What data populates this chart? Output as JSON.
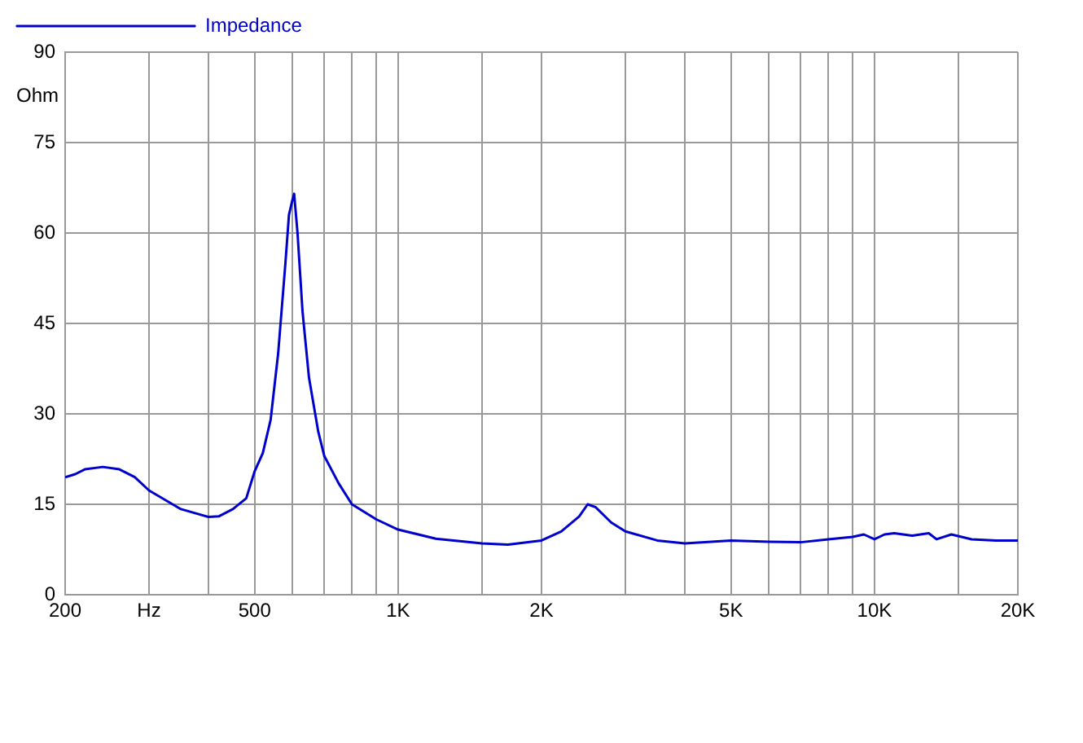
{
  "chart_data": {
    "type": "line",
    "ylabel": "Ohm",
    "legend": "top left",
    "grid": true,
    "log": "x",
    "marker": "none",
    "line_style": "solid",
    "xlim": [
      200,
      20000
    ],
    "ylim": [
      0,
      90
    ],
    "xticks": [
      200,
      {
        "value": 300,
        "label": "Hz"
      },
      {
        "value": 400,
        "label": null
      },
      500,
      {
        "value": 600,
        "label": null
      },
      {
        "value": 700,
        "label": null
      },
      {
        "value": 800,
        "label": null
      },
      {
        "value": 900,
        "label": null
      },
      {
        "value": 1000,
        "label": "1K"
      },
      {
        "value": 1500,
        "label": null
      },
      {
        "value": 2000,
        "label": "2K"
      },
      {
        "value": 3000,
        "label": null
      },
      {
        "value": 4000,
        "label": null
      },
      {
        "value": 5000,
        "label": "5K"
      },
      {
        "value": 6000,
        "label": null
      },
      {
        "value": 7000,
        "label": null
      },
      {
        "value": 8000,
        "label": null
      },
      {
        "value": 9000,
        "label": null
      },
      {
        "value": 10000,
        "label": "10K"
      },
      {
        "value": 15000,
        "label": null
      },
      {
        "value": 20000,
        "label": "20K"
      }
    ],
    "yticks": [
      0,
      15,
      30,
      45,
      60,
      75,
      90
    ],
    "x": [
      200,
      210,
      220,
      240,
      260,
      280,
      300,
      350,
      400,
      420,
      450,
      480,
      500,
      520,
      540,
      560,
      580,
      590,
      600,
      605,
      615,
      630,
      650,
      680,
      700,
      750,
      800,
      900,
      1000,
      1200,
      1500,
      1700,
      2000,
      2200,
      2400,
      2500,
      2600,
      2800,
      3000,
      3500,
      4000,
      5000,
      6000,
      7000,
      8000,
      9000,
      9500,
      10000,
      10500,
      11000,
      12000,
      13000,
      13500,
      14500,
      16000,
      18000,
      20000
    ],
    "series": [
      {
        "name": "Impedance",
        "color": "#0000cc",
        "values": [
          19.5,
          20,
          20.8,
          21.2,
          20.8,
          19.5,
          17.3,
          14.2,
          12.9,
          13,
          14.2,
          16,
          20.5,
          23.5,
          29,
          40,
          55,
          63,
          65.5,
          66.5,
          60,
          47,
          36,
          27,
          23,
          18.5,
          15,
          12.5,
          10.8,
          9.3,
          8.5,
          8.3,
          9,
          10.5,
          13,
          15,
          14.5,
          12,
          10.5,
          9,
          8.5,
          9,
          8.8,
          8.7,
          9.2,
          9.6,
          10,
          9.2,
          10,
          10.2,
          9.8,
          10.2,
          9.2,
          10,
          9.2,
          9,
          9
        ]
      }
    ]
  }
}
